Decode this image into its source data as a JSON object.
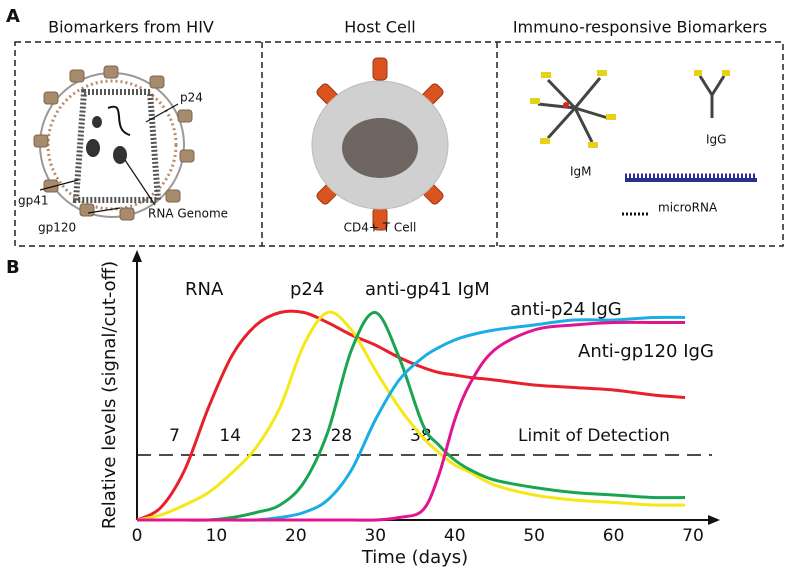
{
  "panel_a": {
    "label": "A",
    "sections": [
      {
        "title": "Biomarkers from HIV",
        "labels": [
          "p24",
          "gp41",
          "gp120",
          "RNA Genome"
        ]
      },
      {
        "title": "Host Cell",
        "labels": [
          "CD4+ T Cell"
        ]
      },
      {
        "title": "Immuno-responsive Biomarkers",
        "labels": [
          "IgM",
          "IgG",
          "microRNA"
        ]
      }
    ]
  },
  "chart_data": {
    "type": "line",
    "panel_label": "B",
    "x_label": "Time (days)",
    "y_label": "Relative levels (signal/cut-off)",
    "x": [
      0,
      3,
      6,
      9,
      12,
      15,
      18,
      21,
      24,
      27,
      30,
      33,
      36,
      38,
      40,
      42,
      45,
      50,
      55,
      60,
      65,
      69
    ],
    "series": [
      {
        "name": "RNA",
        "color": "#e8202a",
        "values": [
          0,
          5,
          20,
          45,
          66,
          78,
          83,
          83,
          79,
          74,
          70,
          65,
          61,
          59,
          58,
          57,
          56,
          54,
          53,
          52,
          50,
          49
        ]
      },
      {
        "name": "p24",
        "color": "#f5e816",
        "values": [
          0,
          2,
          6,
          11,
          19,
          29,
          45,
          70,
          83,
          76,
          60,
          45,
          33,
          27,
          22,
          19,
          14,
          10,
          8,
          7,
          6,
          6
        ]
      },
      {
        "name": "anti-gp41 IgM",
        "color": "#1aa550",
        "values": [
          0,
          0,
          0,
          0,
          1,
          3,
          6,
          15,
          35,
          68,
          83,
          65,
          38,
          30,
          24,
          20,
          16,
          13,
          11,
          10,
          9,
          9
        ]
      },
      {
        "name": "anti-p24 IgG",
        "color": "#1aaee5",
        "values": [
          0,
          0,
          0,
          0,
          0,
          0,
          1,
          3,
          8,
          20,
          40,
          56,
          65,
          69,
          72,
          74,
          76,
          78,
          80,
          80,
          81,
          81
        ]
      },
      {
        "name": "Anti-gp120 IgG",
        "color": "#e0158f",
        "values": [
          0,
          0,
          0,
          0,
          0,
          0,
          0,
          0,
          0,
          0,
          0,
          1,
          4,
          18,
          40,
          55,
          68,
          76,
          78,
          79,
          79,
          79
        ]
      }
    ],
    "xlim": [
      0,
      70
    ],
    "xticks": [
      0,
      10,
      20,
      30,
      40,
      50,
      60,
      70
    ],
    "ylim": [
      0,
      100
    ],
    "detection_limit": 26,
    "detection_label": "Limit of Detection",
    "detection_days": [
      7,
      14,
      23,
      28,
      38
    ]
  }
}
